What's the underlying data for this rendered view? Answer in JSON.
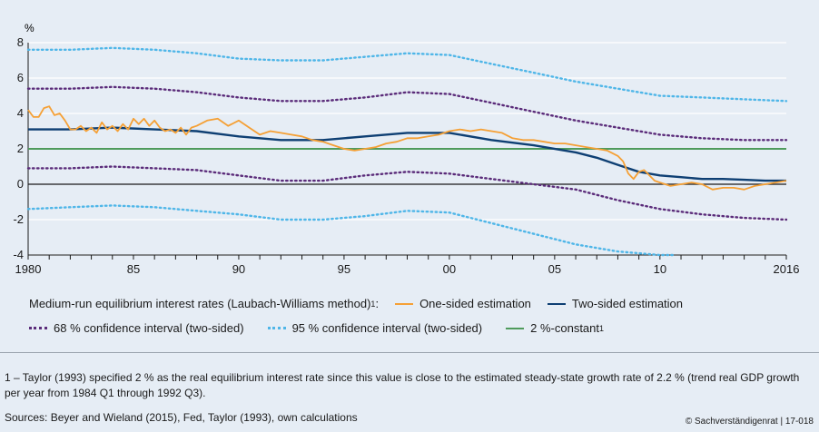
{
  "chart_data": {
    "type": "line",
    "unit_label": "%",
    "ylim": [
      -4,
      8
    ],
    "y_ticks": [
      -4,
      -2,
      0,
      2,
      4,
      6,
      8
    ],
    "xlim": [
      1980,
      2016
    ],
    "x_ticks": [
      {
        "value": 1980,
        "label": "1980"
      },
      {
        "value": 1985,
        "label": "85"
      },
      {
        "value": 1990,
        "label": "90"
      },
      {
        "value": 1995,
        "label": "95"
      },
      {
        "value": 2000,
        "label": "00"
      },
      {
        "value": 2005,
        "label": "05"
      },
      {
        "value": 2010,
        "label": "10"
      },
      {
        "value": 2016,
        "label": "2016"
      }
    ],
    "legend_title": "Medium-run equilibrium interest rates (Laubach-Williams method)",
    "legend_title_sup": "1",
    "series": [
      {
        "name": "One-sided estimation",
        "color": "#f5a035",
        "style": "solid",
        "x": [
          1980.0,
          1980.25,
          1980.5,
          1980.75,
          1981.0,
          1981.25,
          1981.5,
          1981.75,
          1982.0,
          1982.25,
          1982.5,
          1982.75,
          1983.0,
          1983.25,
          1983.5,
          1983.75,
          1984.0,
          1984.25,
          1984.5,
          1984.75,
          1985.0,
          1985.25,
          1985.5,
          1985.75,
          1986.0,
          1986.25,
          1986.5,
          1986.75,
          1987.0,
          1987.25,
          1987.5,
          1987.75,
          1988.0,
          1988.5,
          1989.0,
          1989.5,
          1990.0,
          1990.5,
          1991.0,
          1991.5,
          1992.0,
          1992.5,
          1993.0,
          1993.5,
          1994.0,
          1994.5,
          1995.0,
          1995.5,
          1996.0,
          1996.5,
          1997.0,
          1997.5,
          1998.0,
          1998.5,
          1999.0,
          1999.5,
          2000.0,
          2000.5,
          2001.0,
          2001.5,
          2002.0,
          2002.5,
          2003.0,
          2003.5,
          2004.0,
          2004.5,
          2005.0,
          2005.5,
          2006.0,
          2006.5,
          2007.0,
          2007.5,
          2008.0,
          2008.25,
          2008.5,
          2008.75,
          2009.0,
          2009.25,
          2009.5,
          2009.75,
          2010.0,
          2010.5,
          2011.0,
          2011.5,
          2012.0,
          2012.5,
          2013.0,
          2013.5,
          2014.0,
          2014.5,
          2015.0,
          2015.5,
          2016.0
        ],
        "values": [
          4.2,
          3.8,
          3.8,
          4.3,
          4.4,
          3.9,
          4.0,
          3.6,
          3.1,
          3.1,
          3.3,
          3.0,
          3.2,
          2.9,
          3.5,
          3.1,
          3.3,
          3.0,
          3.4,
          3.1,
          3.7,
          3.4,
          3.7,
          3.3,
          3.6,
          3.2,
          3.0,
          3.1,
          2.9,
          3.2,
          2.8,
          3.2,
          3.3,
          3.6,
          3.7,
          3.3,
          3.6,
          3.2,
          2.8,
          3.0,
          2.9,
          2.8,
          2.7,
          2.5,
          2.4,
          2.2,
          2.0,
          1.9,
          2.0,
          2.1,
          2.3,
          2.4,
          2.6,
          2.6,
          2.7,
          2.8,
          3.0,
          3.1,
          3.0,
          3.1,
          3.0,
          2.9,
          2.6,
          2.5,
          2.5,
          2.4,
          2.3,
          2.3,
          2.2,
          2.1,
          2.0,
          1.9,
          1.6,
          1.3,
          0.6,
          0.3,
          0.7,
          0.8,
          0.5,
          0.2,
          0.1,
          -0.1,
          0.0,
          0.1,
          0.0,
          -0.3,
          -0.2,
          -0.2,
          -0.3,
          -0.1,
          0.0,
          0.1,
          0.2
        ]
      },
      {
        "name": "Two-sided estimation",
        "color": "#0e3f73",
        "style": "solid",
        "x": [
          1980,
          1982,
          1984,
          1986,
          1988,
          1990,
          1992,
          1994,
          1996,
          1998,
          2000,
          2002,
          2004,
          2006,
          2007,
          2008,
          2009,
          2010,
          2011,
          2012,
          2013,
          2014,
          2015,
          2016
        ],
        "values": [
          3.1,
          3.1,
          3.2,
          3.1,
          3.0,
          2.7,
          2.5,
          2.5,
          2.7,
          2.9,
          2.9,
          2.5,
          2.2,
          1.8,
          1.5,
          1.1,
          0.7,
          0.5,
          0.4,
          0.3,
          0.3,
          0.25,
          0.2,
          0.2
        ]
      },
      {
        "name": "68 % confidence interval (two-sided)",
        "color": "#5b2c7a",
        "style": "dotted",
        "legend": true,
        "x": [
          1980,
          1982,
          1984,
          1986,
          1988,
          1990,
          1992,
          1994,
          1996,
          1998,
          2000,
          2002,
          2004,
          2006,
          2008,
          2010,
          2012,
          2014,
          2016
        ],
        "values": [
          5.4,
          5.4,
          5.5,
          5.4,
          5.2,
          4.9,
          4.7,
          4.7,
          4.9,
          5.2,
          5.1,
          4.6,
          4.1,
          3.6,
          3.2,
          2.8,
          2.6,
          2.5,
          2.5
        ]
      },
      {
        "name": "68 % confidence interval (two-sided)",
        "color": "#5b2c7a",
        "style": "dotted",
        "legend": false,
        "x": [
          1980,
          1982,
          1984,
          1986,
          1988,
          1990,
          1992,
          1994,
          1996,
          1998,
          2000,
          2002,
          2004,
          2006,
          2008,
          2010,
          2012,
          2014,
          2016
        ],
        "values": [
          0.9,
          0.9,
          1.0,
          0.9,
          0.8,
          0.5,
          0.2,
          0.2,
          0.5,
          0.7,
          0.6,
          0.3,
          0.0,
          -0.3,
          -0.9,
          -1.4,
          -1.7,
          -1.9,
          -2.0
        ]
      },
      {
        "name": "95 % confidence interval (two-sided)",
        "color": "#4fb6e8",
        "style": "dotted",
        "legend": true,
        "x": [
          1980,
          1982,
          1984,
          1986,
          1988,
          1990,
          1992,
          1994,
          1996,
          1998,
          2000,
          2002,
          2004,
          2006,
          2008,
          2010,
          2012,
          2014,
          2016
        ],
        "values": [
          7.6,
          7.6,
          7.7,
          7.6,
          7.4,
          7.1,
          7.0,
          7.0,
          7.2,
          7.4,
          7.3,
          6.8,
          6.3,
          5.8,
          5.4,
          5.0,
          4.9,
          4.8,
          4.7
        ]
      },
      {
        "name": "95 % confidence interval (two-sided)",
        "color": "#4fb6e8",
        "style": "dotted",
        "legend": false,
        "x": [
          1980,
          1982,
          1984,
          1986,
          1988,
          1990,
          1992,
          1994,
          1996,
          1998,
          2000,
          2002,
          2004,
          2006,
          2008,
          2010,
          2010.6
        ],
        "values": [
          -1.4,
          -1.3,
          -1.2,
          -1.3,
          -1.5,
          -1.7,
          -2.0,
          -2.0,
          -1.8,
          -1.5,
          -1.6,
          -2.2,
          -2.8,
          -3.4,
          -3.8,
          -4.0,
          -4.0
        ]
      },
      {
        "name": "2 %-constant",
        "color": "#4f9b5c",
        "style": "solid",
        "legend_sup": "1",
        "x": [
          1980,
          2016
        ],
        "values": [
          2,
          2
        ]
      }
    ]
  },
  "footnote": "1 – Taylor (1993) specified 2 % as the real equilibrium interest rate since this value is close to the estimated steady-state growth rate of 2.2 % (trend real GDP growth per year from 1984 Q1 through 1992 Q3).",
  "sources": "Sources: Beyer and Wieland (2015), Fed, Taylor (1993), own calculations",
  "credit": "© Sachverständigenrat | 17-018"
}
